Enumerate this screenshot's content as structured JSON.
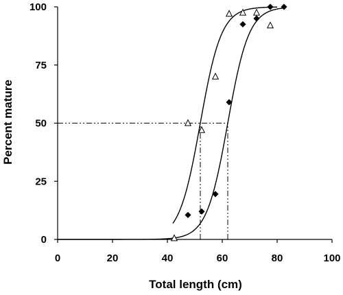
{
  "chart_data": {
    "type": "scatter",
    "title": "",
    "xlabel": "Total length (cm)",
    "ylabel": "Percent mature",
    "xlim": [
      0,
      100
    ],
    "ylim": [
      0,
      100
    ],
    "x_ticks": [
      0,
      20,
      40,
      60,
      80,
      100
    ],
    "y_ticks": [
      0,
      25,
      50,
      75,
      100
    ],
    "grid": false,
    "legend": "none",
    "series": [
      {
        "marker": "open-triangle",
        "color": "#000000",
        "points": [
          [
            42.5,
            0.5
          ],
          [
            47.5,
            50
          ],
          [
            52.5,
            47
          ],
          [
            57.5,
            70
          ],
          [
            62.5,
            97
          ],
          [
            67.5,
            97.5
          ],
          [
            72.5,
            97.5
          ],
          [
            77.5,
            92
          ]
        ],
        "curve": {
          "type": "logistic",
          "L50": 52,
          "slope": 0.26,
          "x_range": [
            42,
            80
          ]
        }
      },
      {
        "marker": "filled-diamond",
        "color": "#000000",
        "points": [
          [
            47.5,
            10.5
          ],
          [
            52.5,
            12
          ],
          [
            57.5,
            19.5
          ],
          [
            62.5,
            59
          ],
          [
            67.5,
            92.5
          ],
          [
            72.5,
            95
          ],
          [
            77.5,
            100
          ],
          [
            82.5,
            100
          ]
        ],
        "curve": {
          "type": "logistic",
          "L50": 62,
          "slope": 0.26,
          "x_range": [
            0,
            82
          ]
        }
      }
    ],
    "reference_lines": [
      {
        "y": 50,
        "x_start": 0,
        "x_end": 62,
        "style": "dash-dot-dot"
      },
      {
        "x": 52,
        "y_start": 0,
        "y_end": 50,
        "style": "dash-dot-dot"
      },
      {
        "x": 62,
        "y_start": 0,
        "y_end": 50,
        "style": "dash-dot-dot"
      }
    ]
  }
}
